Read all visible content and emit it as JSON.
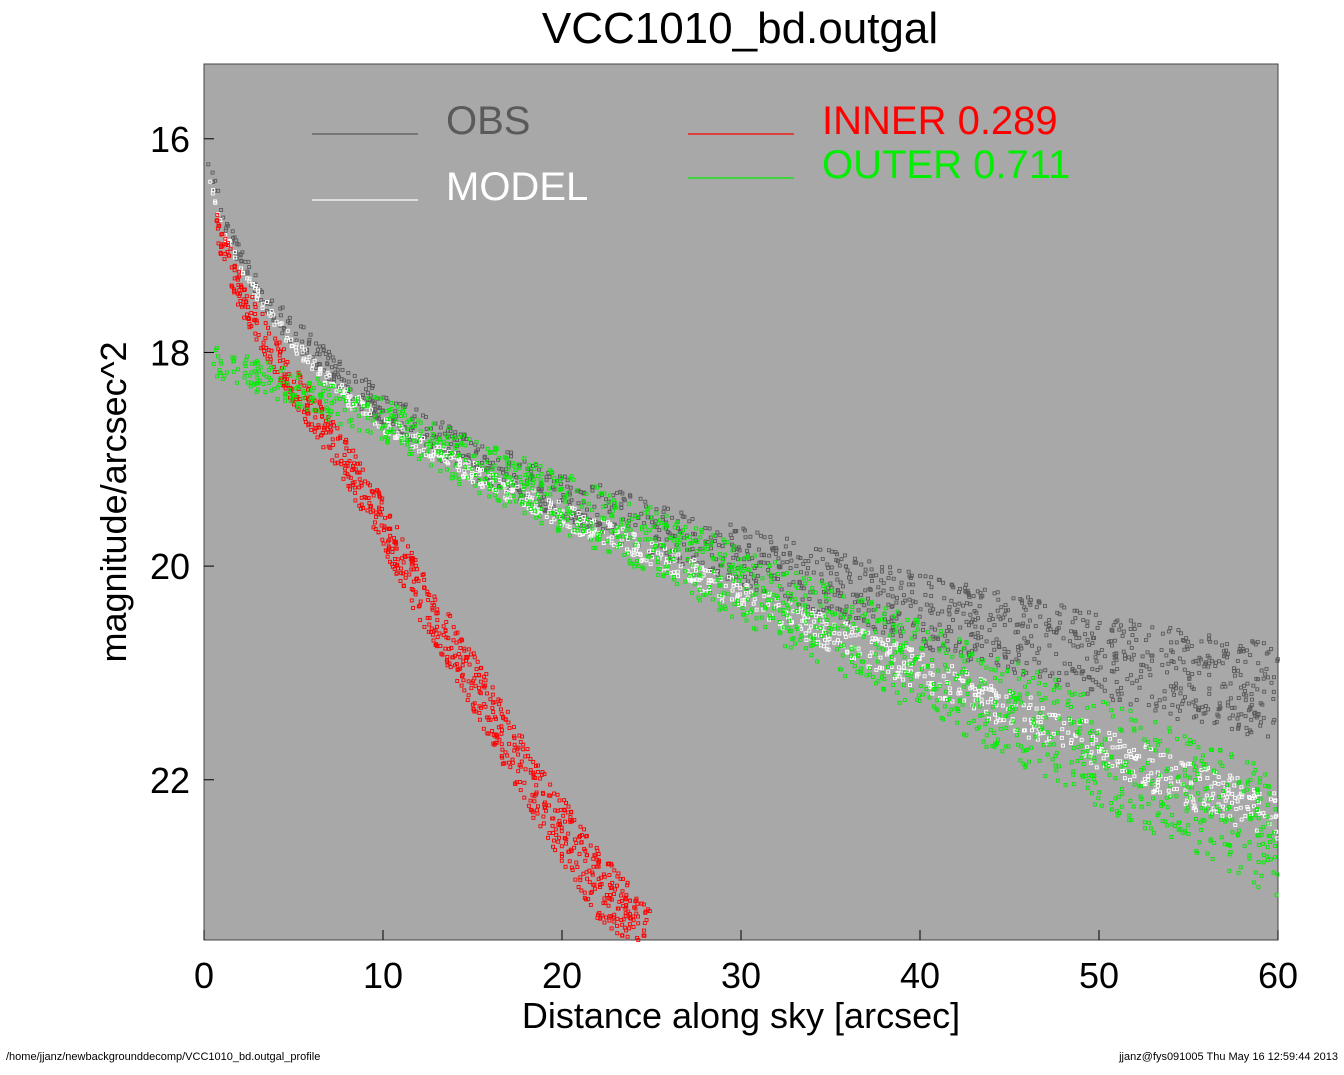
{
  "chart_data": {
    "type": "scatter",
    "title": "VCC1010_bd.outgal",
    "xlabel": "Distance along sky [arcsec]",
    "ylabel": "magnitude/arcsec^2",
    "xlim": [
      0,
      60
    ],
    "ylim": [
      15.3,
      23.5
    ],
    "y_inverted": true,
    "x_ticks": [
      0,
      10,
      20,
      30,
      40,
      50,
      60
    ],
    "y_ticks": [
      16,
      18,
      20,
      22
    ],
    "background_color": "#a8a8a8",
    "legend": [
      {
        "name": "OBS",
        "value": "",
        "color": "#5a5a5a"
      },
      {
        "name": "MODEL",
        "value": "",
        "color": "#ffffff"
      },
      {
        "name": "INNER",
        "value": "0.289",
        "color": "#ff0000"
      },
      {
        "name": "OUTER",
        "value": "0.711",
        "color": "#00ee00"
      }
    ],
    "series": [
      {
        "name": "OBS",
        "x": [
          0.2,
          1,
          2,
          4,
          6,
          8,
          10,
          15,
          20,
          25,
          30,
          35,
          40,
          45,
          50,
          55,
          60
        ],
        "y": [
          16.2,
          16.7,
          17.1,
          17.6,
          17.95,
          18.25,
          18.5,
          18.95,
          19.3,
          19.6,
          19.85,
          20.1,
          20.35,
          20.55,
          20.75,
          20.95,
          21.1
        ]
      },
      {
        "name": "MODEL",
        "x": [
          0.2,
          1,
          2,
          4,
          6,
          8,
          10,
          15,
          20,
          25,
          30,
          35,
          40,
          45,
          50,
          55,
          60
        ],
        "y": [
          16.3,
          16.8,
          17.2,
          17.7,
          18.1,
          18.4,
          18.65,
          19.1,
          19.5,
          19.85,
          20.25,
          20.6,
          20.95,
          21.3,
          21.65,
          22.0,
          22.3
        ]
      },
      {
        "name": "INNER",
        "x": [
          0.5,
          2,
          4,
          6,
          8,
          10,
          12,
          15,
          18,
          20,
          22,
          24,
          25
        ],
        "y": [
          16.7,
          17.4,
          18.0,
          18.5,
          19.0,
          19.55,
          20.2,
          21.0,
          21.9,
          22.4,
          22.9,
          23.3,
          23.5
        ]
      },
      {
        "name": "OUTER",
        "x": [
          0.5,
          5,
          10,
          15,
          20,
          25,
          30,
          35,
          40,
          45,
          50,
          55,
          60
        ],
        "y": [
          18.05,
          18.3,
          18.6,
          19.0,
          19.35,
          19.7,
          20.1,
          20.5,
          20.85,
          21.25,
          21.65,
          22.0,
          22.4
        ]
      }
    ]
  },
  "footer": {
    "left": "/home/jjanz/newbackgrounddecomp/VCC1010_bd.outgal_profile",
    "right": "jjanz@fys091005  Thu May 16 12:59:44 2013"
  }
}
